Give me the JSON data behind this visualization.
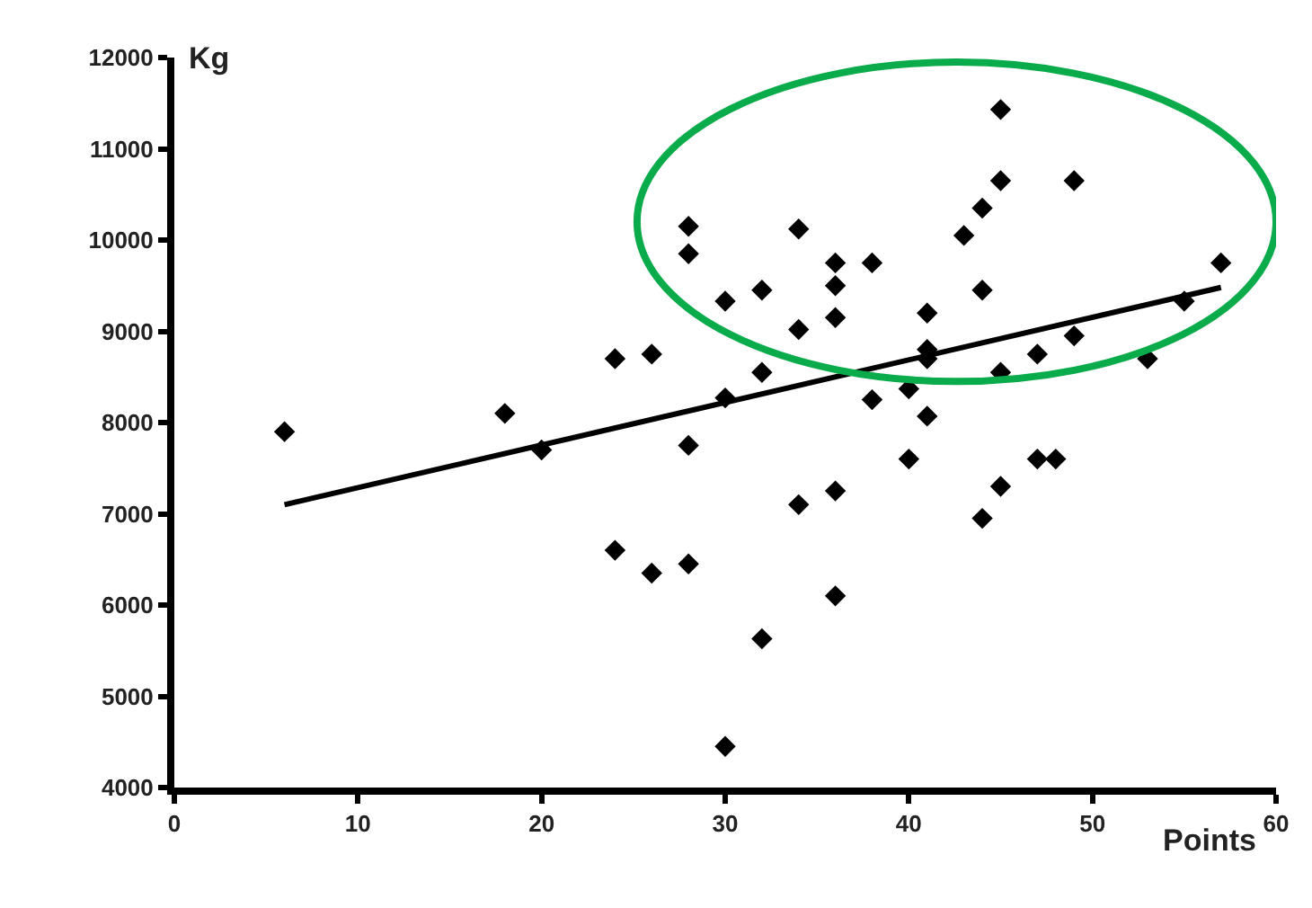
{
  "chart_data": {
    "type": "scatter",
    "xlabel": "Points",
    "ylabel": "Kg",
    "xlim": [
      0,
      60
    ],
    "xticks": [
      0,
      10,
      20,
      30,
      40,
      50,
      60
    ],
    "ylim": [
      4000,
      12000
    ],
    "yticks": [
      4000,
      5000,
      6000,
      7000,
      8000,
      9000,
      10000,
      11000,
      12000
    ],
    "series": [
      {
        "marker": "diamond",
        "color": "#000000",
        "x": [
          6,
          18,
          20,
          24,
          26,
          24,
          26,
          28,
          28,
          28,
          28,
          30,
          30,
          30,
          32,
          32,
          32,
          34,
          34,
          34,
          36,
          36,
          36,
          36,
          36,
          38,
          38,
          40,
          40,
          41,
          41,
          41,
          41,
          43,
          44,
          44,
          44,
          45,
          45,
          45,
          45,
          47,
          47,
          48,
          49,
          49,
          53,
          55,
          57
        ],
        "values": [
          7900,
          8100,
          7700,
          8700,
          8750,
          6600,
          6350,
          10150,
          9850,
          7750,
          6450,
          9330,
          8270,
          4450,
          8550,
          9450,
          5630,
          10120,
          9020,
          7100,
          9750,
          9500,
          9150,
          7250,
          6100,
          9750,
          8250,
          8370,
          7600,
          9200,
          8800,
          8700,
          8070,
          10050,
          10350,
          9450,
          6950,
          11430,
          10650,
          8550,
          7300,
          8750,
          7600,
          7600,
          10650,
          8950,
          8700,
          9330,
          9750
        ]
      },
      {
        "type": "line",
        "color": "#000000",
        "x": [
          6,
          57
        ],
        "values": [
          7100,
          9480
        ],
        "line_style": "solid"
      }
    ]
  }
}
